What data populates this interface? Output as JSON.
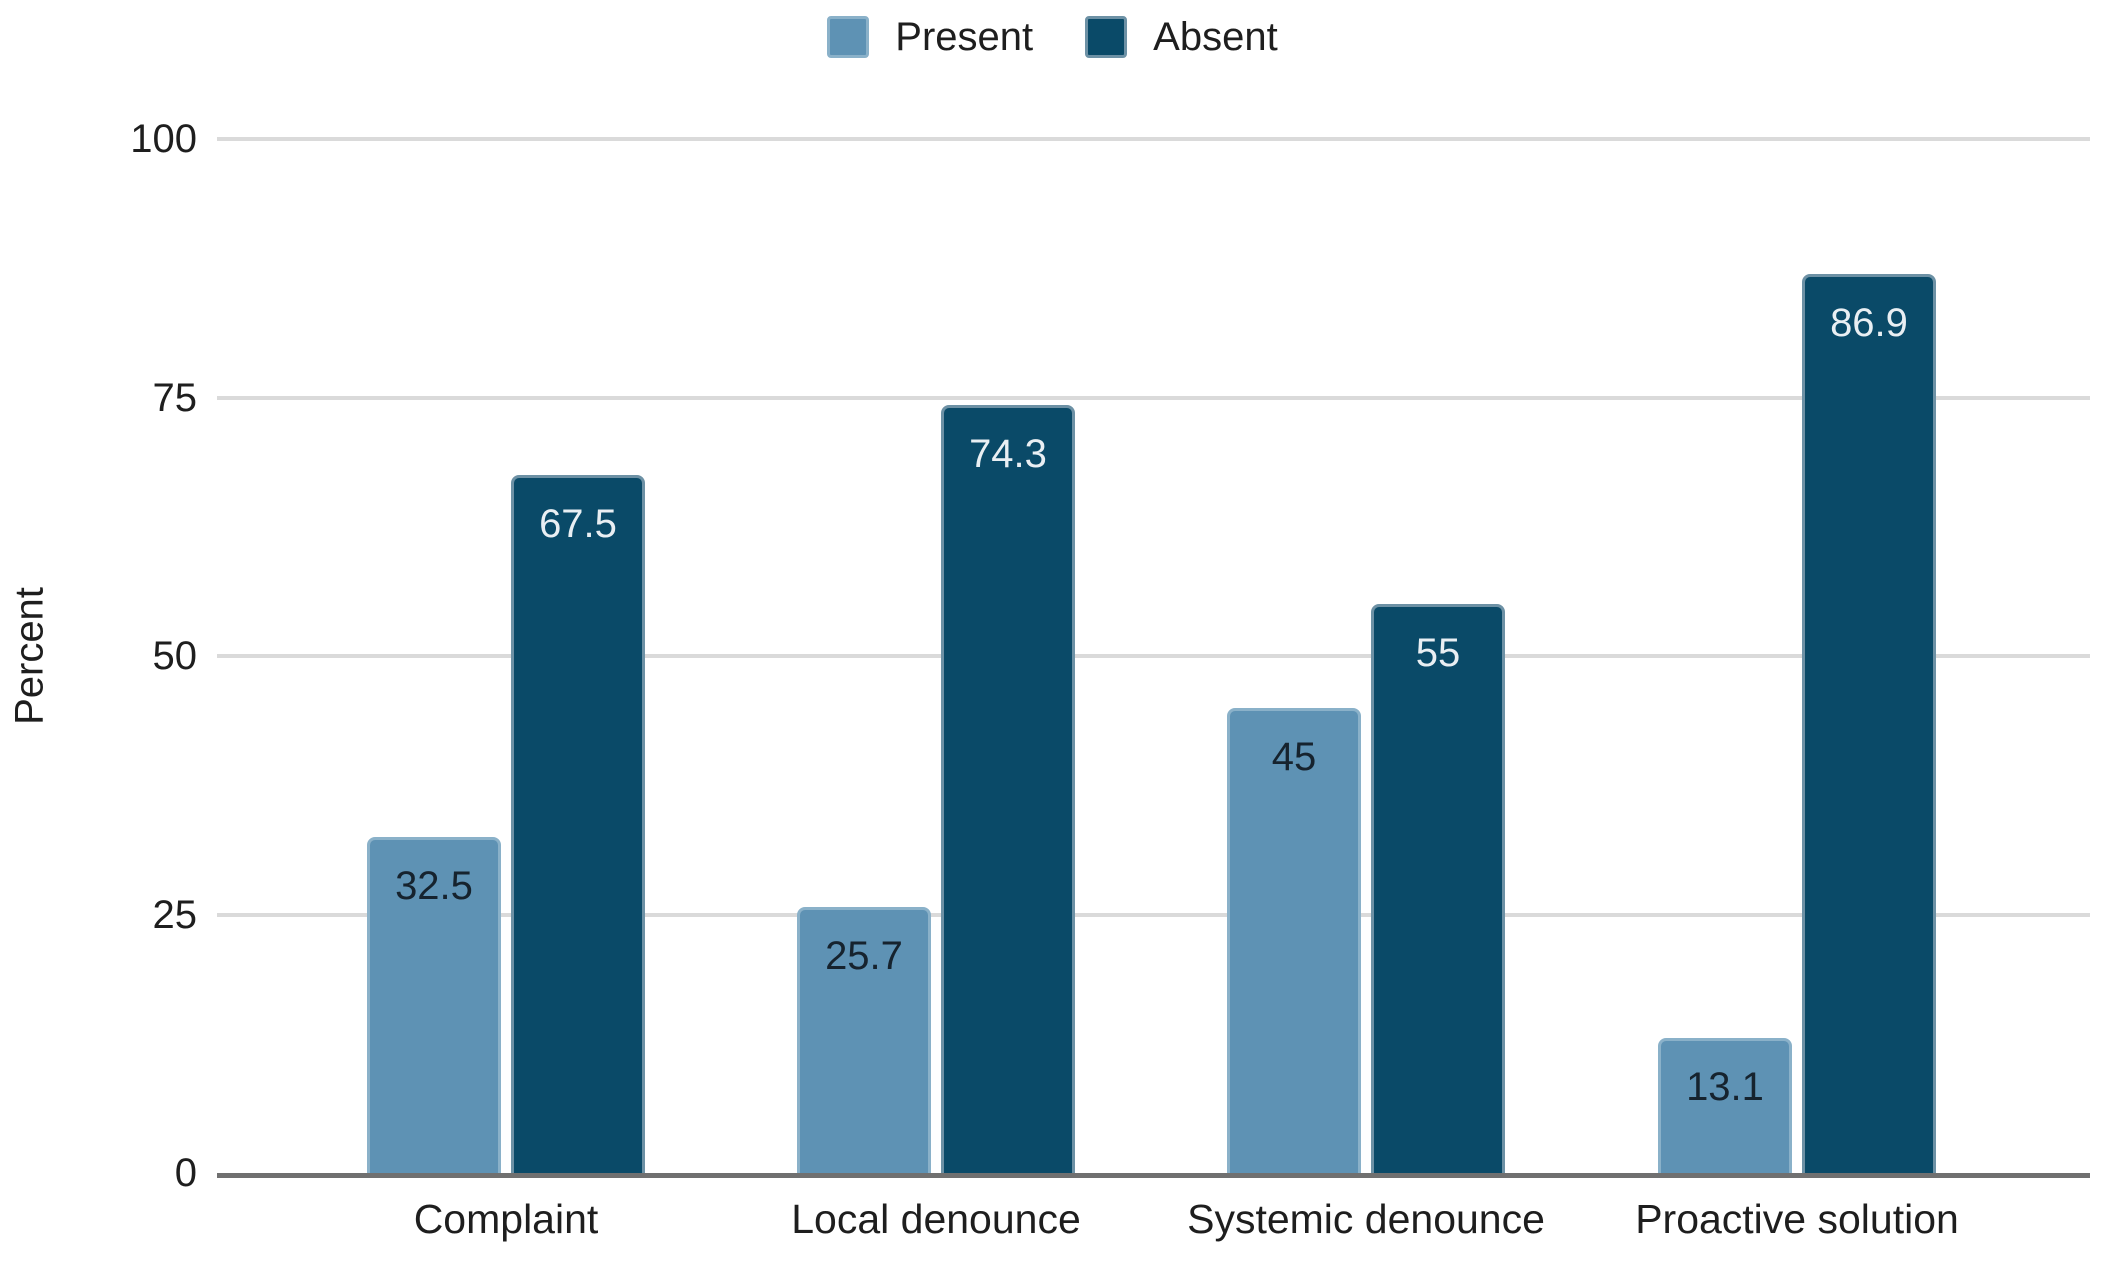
{
  "chart_data": {
    "type": "bar",
    "orientation": "vertical-grouped",
    "title": "",
    "xlabel": "",
    "ylabel": "Percent",
    "ylim": [
      0,
      100
    ],
    "yticks": [
      0,
      25,
      50,
      75,
      100
    ],
    "grid": true,
    "legend_position": "top-center",
    "categories": [
      "Complaint",
      "Local denounce",
      "Systemic denounce",
      "Proactive solution"
    ],
    "series": [
      {
        "name": "Present",
        "values": [
          32.5,
          25.7,
          45,
          13.1
        ],
        "labels": [
          "32.5",
          "25.7",
          "45",
          "13.1"
        ],
        "color": "#5e92b4",
        "border_color": "#8ab1c9",
        "value_label_color": "#16232e"
      },
      {
        "name": "Absent",
        "values": [
          67.5,
          74.3,
          55,
          86.9
        ],
        "labels": [
          "67.5",
          "74.3",
          "55",
          "86.9"
        ],
        "color": "#0a4a68",
        "border_color": "#6d91a5",
        "value_label_color": "#e9eff3"
      }
    ]
  },
  "style": {
    "background": "#ffffff",
    "gridline_color": "#dadada",
    "axis_line_color": "#707070",
    "text_color": "#1e1e1e"
  }
}
